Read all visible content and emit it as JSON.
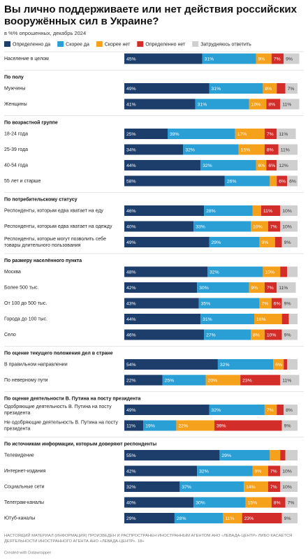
{
  "chart_data": {
    "type": "stacked-bar-100",
    "title": "Вы лично поддерживаете или нет действия российских вооружённых сил в Украине?",
    "subtitle": "в %% опрошенных, декабрь 2024",
    "note": "НАСТОЯЩИЙ МАТЕРИАЛ (ИНФОРМАЦИЯ) ПРОИЗВЕДЕН И РАСПРОСТРАНЕН ИНОСТРАННЫМ АГЕНТОМ АНО «ЛЕВАДА-ЦЕНТР» ЛИБО КАСАЕТСЯ ДЕЯТЕЛЬНОСТИ ИНОСТРАННОГО АГЕНТА АНО «ЛЕВАДА-ЦЕНТР». 18+",
    "credit": "Created with Datawrapper",
    "categories": [
      "Население в целом",
      "Мужчины",
      "Женщины",
      "18-24 года",
      "25-39 года",
      "40-54 года",
      "55 лет и старше",
      "Респонденты, которым едва хватает на еду",
      "Респонденты, которым едва хватает на одежду",
      "Респонденты, которые могут позволить себе товары длительного пользования",
      "Москва",
      "Более 500 тыс.",
      "От 100 до 500 тыс.",
      "Города до 100 тыс.",
      "Село",
      "В правильном направлении",
      "По неверному пути",
      "Одобряющие деятельность В. Путина на посту президента",
      "Не одобряющие деятельность В. Путина на посту президента",
      "Телевидение",
      "Интернет-издания",
      "Социальные сети",
      "Телеграм-каналы",
      "Ютуб-каналы"
    ],
    "group_titles": [
      null,
      "По полу",
      null,
      "По возрастной группе",
      null,
      null,
      null,
      "По потребительскому статусу",
      null,
      null,
      "По размеру населённого пункта",
      null,
      null,
      null,
      null,
      "По оценке текущего положения дел в стране",
      null,
      "По оценке деятельности В. Путина на посту президента",
      null,
      "По источникам информации, которым доверяют респонденты",
      null,
      null,
      null,
      null
    ],
    "xlim": [
      0,
      100
    ],
    "series": [
      {
        "name": "Определенно да",
        "color": "#1d3d6b",
        "values": [
          45,
          49,
          41,
          25,
          34,
          44,
          58,
          46,
          40,
          49,
          48,
          42,
          43,
          44,
          46,
          54,
          22,
          49,
          11,
          55,
          42,
          32,
          40,
          29
        ],
        "value_labels": [
          "45%",
          "49%",
          "41%",
          "25%",
          "34%",
          "44%",
          "58%",
          "46%",
          "40%",
          "49%",
          "48%",
          "42%",
          "43%",
          "44%",
          "46%",
          "54%",
          "22%",
          "49%",
          "11%",
          "55%",
          "42%",
          "32%",
          "40%",
          "29%"
        ]
      },
      {
        "name": "Скорее да",
        "color": "#2a9fd6",
        "values": [
          31,
          31,
          31,
          39,
          32,
          32,
          26,
          28,
          33,
          29,
          32,
          30,
          35,
          31,
          27,
          32,
          25,
          32,
          19,
          29,
          32,
          37,
          30,
          28
        ],
        "value_labels": [
          "31%",
          "31%",
          "31%",
          "39%",
          "32%",
          "32%",
          "26%",
          "28%",
          "33%",
          "29%",
          "32%",
          "30%",
          "35%",
          "31%",
          "27%",
          "32%",
          "25%",
          "32%",
          "19%",
          "29%",
          "32%",
          "37%",
          "30%",
          "28%"
        ]
      },
      {
        "name": "Скорее нет",
        "color": "#f6a11b",
        "values": [
          9,
          8,
          10,
          17,
          15,
          6,
          4,
          5,
          10,
          9,
          10,
          9,
          7,
          16,
          8,
          6,
          20,
          7,
          22,
          6,
          9,
          14,
          15,
          11
        ],
        "value_labels": [
          "9%",
          "8%",
          "10%",
          "17%",
          "15%",
          "6%",
          null,
          null,
          "10%",
          "9%",
          "10%",
          "9%",
          "7%",
          "16%",
          "8%",
          "6%",
          "20%",
          "7%",
          "22%",
          null,
          "9%",
          "14%",
          "15%",
          "11%"
        ]
      },
      {
        "name": "Определенно нет",
        "color": "#d32d2a",
        "values": [
          7,
          5,
          8,
          7,
          8,
          6,
          6,
          11,
          7,
          4,
          4,
          7,
          6,
          4,
          10,
          2,
          23,
          4,
          39,
          3,
          7,
          7,
          8,
          23
        ],
        "value_labels": [
          "7%",
          null,
          "8%",
          "7%",
          "8%",
          "6%",
          "6%",
          "11%",
          "7%",
          null,
          null,
          "7%",
          "6%",
          null,
          "10%",
          null,
          "23%",
          null,
          "39%",
          null,
          "7%",
          "7%",
          "8%",
          "23%"
        ]
      },
      {
        "name": "Затрудняюсь ответить",
        "color": "#cfcfcf",
        "values": [
          9,
          7,
          11,
          11,
          11,
          12,
          6,
          10,
          10,
          9,
          6,
          11,
          9,
          5,
          9,
          6,
          11,
          8,
          9,
          7,
          10,
          10,
          7,
          9
        ],
        "value_labels": [
          "9%",
          "7%",
          "11%",
          "11%",
          "11%",
          "12%",
          "6%",
          "10%",
          "10%",
          "9%",
          null,
          "11%",
          "9%",
          null,
          "9%",
          null,
          "11%",
          "8%",
          "9%",
          null,
          "10%",
          "10%",
          "7%",
          "9%"
        ]
      }
    ]
  }
}
